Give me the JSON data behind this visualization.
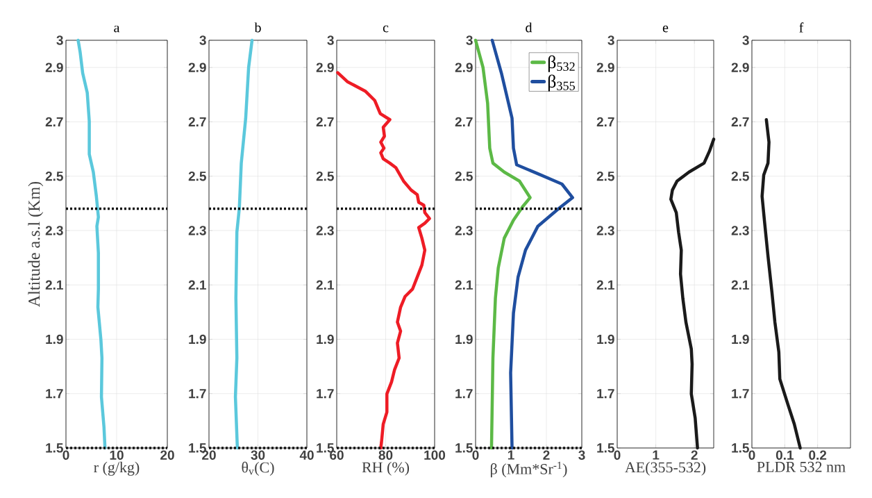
{
  "chart_data": [
    {
      "type": "line",
      "title": "a",
      "xlabel": "r (g/kg)",
      "ylabel": "Altitude a.s.l (Km)",
      "xlim": [
        0,
        20
      ],
      "xticks": [
        0,
        10,
        20
      ],
      "ylim": [
        1.5,
        3
      ],
      "yticks": [
        1.5,
        1.7,
        1.9,
        2.1,
        2.3,
        2.5,
        2.7,
        2.9,
        3
      ],
      "grid": true,
      "ref_lines": [
        {
          "axis": "y",
          "value": 2.38,
          "color": "#111111",
          "line_style": "dotted"
        },
        {
          "axis": "y",
          "value": 1.5,
          "color": "#111111",
          "line_style": "dotted"
        }
      ],
      "series": [
        {
          "color": "#5bc8dc",
          "x": [
            2.4,
            2.8,
            3.3,
            4.2,
            4.6,
            4.6,
            5.4,
            6.0,
            6.4,
            6.1,
            6.4,
            6.4,
            6.3,
            6.9,
            7.1,
            7.0,
            7.5,
            7.7
          ],
          "values": [
            3,
            2.956,
            2.879,
            2.807,
            2.702,
            2.581,
            2.515,
            2.426,
            2.349,
            2.316,
            2.217,
            2.085,
            2.018,
            1.897,
            1.831,
            1.688,
            1.577,
            1.5
          ]
        }
      ]
    },
    {
      "type": "line",
      "title": "b",
      "xlabel": "θ$_{v}$(C)",
      "xlim": [
        20,
        40
      ],
      "xticks": [
        20,
        30,
        40
      ],
      "ylim": [
        1.5,
        3
      ],
      "yticks": [
        1.5,
        1.7,
        1.9,
        2.1,
        2.3,
        2.5,
        2.7,
        2.9,
        3
      ],
      "grid": true,
      "ref_lines": [
        {
          "axis": "y",
          "value": 2.38,
          "color": "#111111",
          "line_style": "dotted"
        },
        {
          "axis": "y",
          "value": 1.5,
          "color": "#111111",
          "line_style": "dotted"
        }
      ],
      "series": [
        {
          "color": "#5bc8dc",
          "x": [
            28.8,
            28.1,
            27.5,
            26.6,
            26.2,
            25.7,
            25.5,
            25.7,
            25.4,
            25.8
          ],
          "values": [
            3,
            2.9,
            2.713,
            2.548,
            2.382,
            2.294,
            2.051,
            1.831,
            1.688,
            1.5
          ]
        }
      ]
    },
    {
      "type": "line",
      "title": "c",
      "xlabel": "RH (%)",
      "xlim": [
        60,
        100
      ],
      "xticks": [
        60,
        80,
        100
      ],
      "ylim": [
        1.5,
        3
      ],
      "yticks": [
        1.5,
        1.7,
        1.9,
        2.1,
        2.3,
        2.5,
        2.7,
        2.9,
        3
      ],
      "grid": true,
      "ref_lines": [
        {
          "axis": "y",
          "value": 2.38,
          "color": "#111111",
          "line_style": "dotted"
        },
        {
          "axis": "y",
          "value": 1.5,
          "color": "#111111",
          "line_style": "dotted"
        }
      ],
      "series": [
        {
          "color": "#ee1c25",
          "x": [
            60.4,
            64.3,
            71.8,
            75.5,
            77.8,
            81.7,
            79.0,
            79.5,
            78.0,
            79.3,
            78.0,
            79.0,
            81.7,
            84.2,
            87.3,
            90.4,
            92.9,
            93.5,
            95.6,
            96.0,
            97.9,
            96.0,
            93.5,
            94.8,
            96.0,
            94.8,
            92.9,
            91.0,
            87.9,
            86.1,
            84.8,
            86.1,
            84.8,
            85.5,
            83.6,
            82.4,
            80.5,
            80.5,
            79.0,
            78.3,
            78.0
          ],
          "values": [
            2.881,
            2.848,
            2.812,
            2.779,
            2.73,
            2.708,
            2.68,
            2.647,
            2.625,
            2.603,
            2.586,
            2.564,
            2.548,
            2.531,
            2.482,
            2.449,
            2.432,
            2.404,
            2.393,
            2.366,
            2.344,
            2.327,
            2.311,
            2.272,
            2.228,
            2.173,
            2.129,
            2.085,
            2.057,
            2.018,
            1.963,
            1.93,
            1.886,
            1.831,
            1.787,
            1.743,
            1.699,
            1.632,
            1.588,
            1.522,
            1.5
          ]
        }
      ]
    },
    {
      "type": "line",
      "title": "d",
      "xlabel": "β (Mm*Sr$^{-1}$)",
      "xlim": [
        0,
        3
      ],
      "xticks": [
        0,
        1,
        2,
        3
      ],
      "ylim": [
        1.5,
        3
      ],
      "yticks": [
        1.5,
        1.7,
        1.9,
        2.1,
        2.3,
        2.5,
        2.7,
        2.9,
        3
      ],
      "grid": true,
      "legend": "top right",
      "ref_lines": [
        {
          "axis": "y",
          "value": 2.38,
          "color": "#111111",
          "line_style": "dotted"
        },
        {
          "axis": "y",
          "value": 1.5,
          "color": "#111111",
          "line_style": "dotted"
        }
      ],
      "series": [
        {
          "name": "β$_{532}$",
          "color": "#5cb946",
          "x": [
            0,
            0.21,
            0.34,
            0.4,
            0.49,
            0.81,
            1.24,
            1.54,
            1.33,
            1.07,
            0.81,
            0.64,
            0.56,
            0.49,
            0.45
          ],
          "values": [
            3,
            2.9,
            2.768,
            2.603,
            2.548,
            2.515,
            2.482,
            2.421,
            2.388,
            2.338,
            2.272,
            2.162,
            2.051,
            1.831,
            1.5
          ]
        },
        {
          "name": "β$_{355}$",
          "color": "#1f4e9f",
          "x": [
            0.47,
            0.73,
            1.03,
            1.07,
            1.16,
            1.76,
            2.44,
            2.74,
            2.36,
            1.76,
            1.41,
            1.2,
            1.07,
            0.99,
            1.03
          ],
          "values": [
            3,
            2.879,
            2.713,
            2.603,
            2.542,
            2.509,
            2.471,
            2.421,
            2.382,
            2.316,
            2.228,
            2.129,
            1.996,
            1.776,
            1.5
          ]
        }
      ]
    },
    {
      "type": "line",
      "title": "e",
      "xlabel": "AE(355-532)",
      "xlim": [
        0,
        2.5
      ],
      "xticks": [
        0,
        1,
        2
      ],
      "ylim": [
        1.5,
        3
      ],
      "yticks": [
        1.5,
        1.7,
        1.9,
        2.1,
        2.3,
        2.5,
        2.7,
        2.9,
        3
      ],
      "grid": true,
      "series": [
        {
          "color": "#1a1a1a",
          "x": [
            2.5,
            2.39,
            2.25,
            1.86,
            1.55,
            1.43,
            1.39,
            1.53,
            1.59,
            1.66,
            1.64,
            1.7,
            1.78,
            1.92,
            1.94,
            1.92,
            2.02,
            2.08
          ],
          "values": [
            2.636,
            2.592,
            2.548,
            2.515,
            2.482,
            2.449,
            2.415,
            2.366,
            2.294,
            2.228,
            2.14,
            2.051,
            1.963,
            1.864,
            1.809,
            1.699,
            1.61,
            1.5
          ]
        }
      ]
    },
    {
      "type": "line",
      "title": "f",
      "xlabel": "PLDR 532 nm",
      "xlim": [
        0,
        0.3
      ],
      "xticks": [
        0,
        0.1,
        0.2
      ],
      "ylim": [
        1.5,
        3
      ],
      "yticks": [
        1.5,
        1.7,
        1.9,
        2.1,
        2.3,
        2.5,
        2.7,
        2.9,
        3
      ],
      "grid": true,
      "series": [
        {
          "color": "#1a1a1a",
          "x": [
            0.044,
            0.052,
            0.049,
            0.036,
            0.031,
            0.038,
            0.049,
            0.061,
            0.07,
            0.082,
            0.085,
            0.111,
            0.129,
            0.147
          ],
          "values": [
            2.708,
            2.625,
            2.548,
            2.504,
            2.426,
            2.338,
            2.206,
            2.073,
            1.963,
            1.853,
            1.754,
            1.655,
            1.588,
            1.5
          ]
        }
      ]
    }
  ]
}
